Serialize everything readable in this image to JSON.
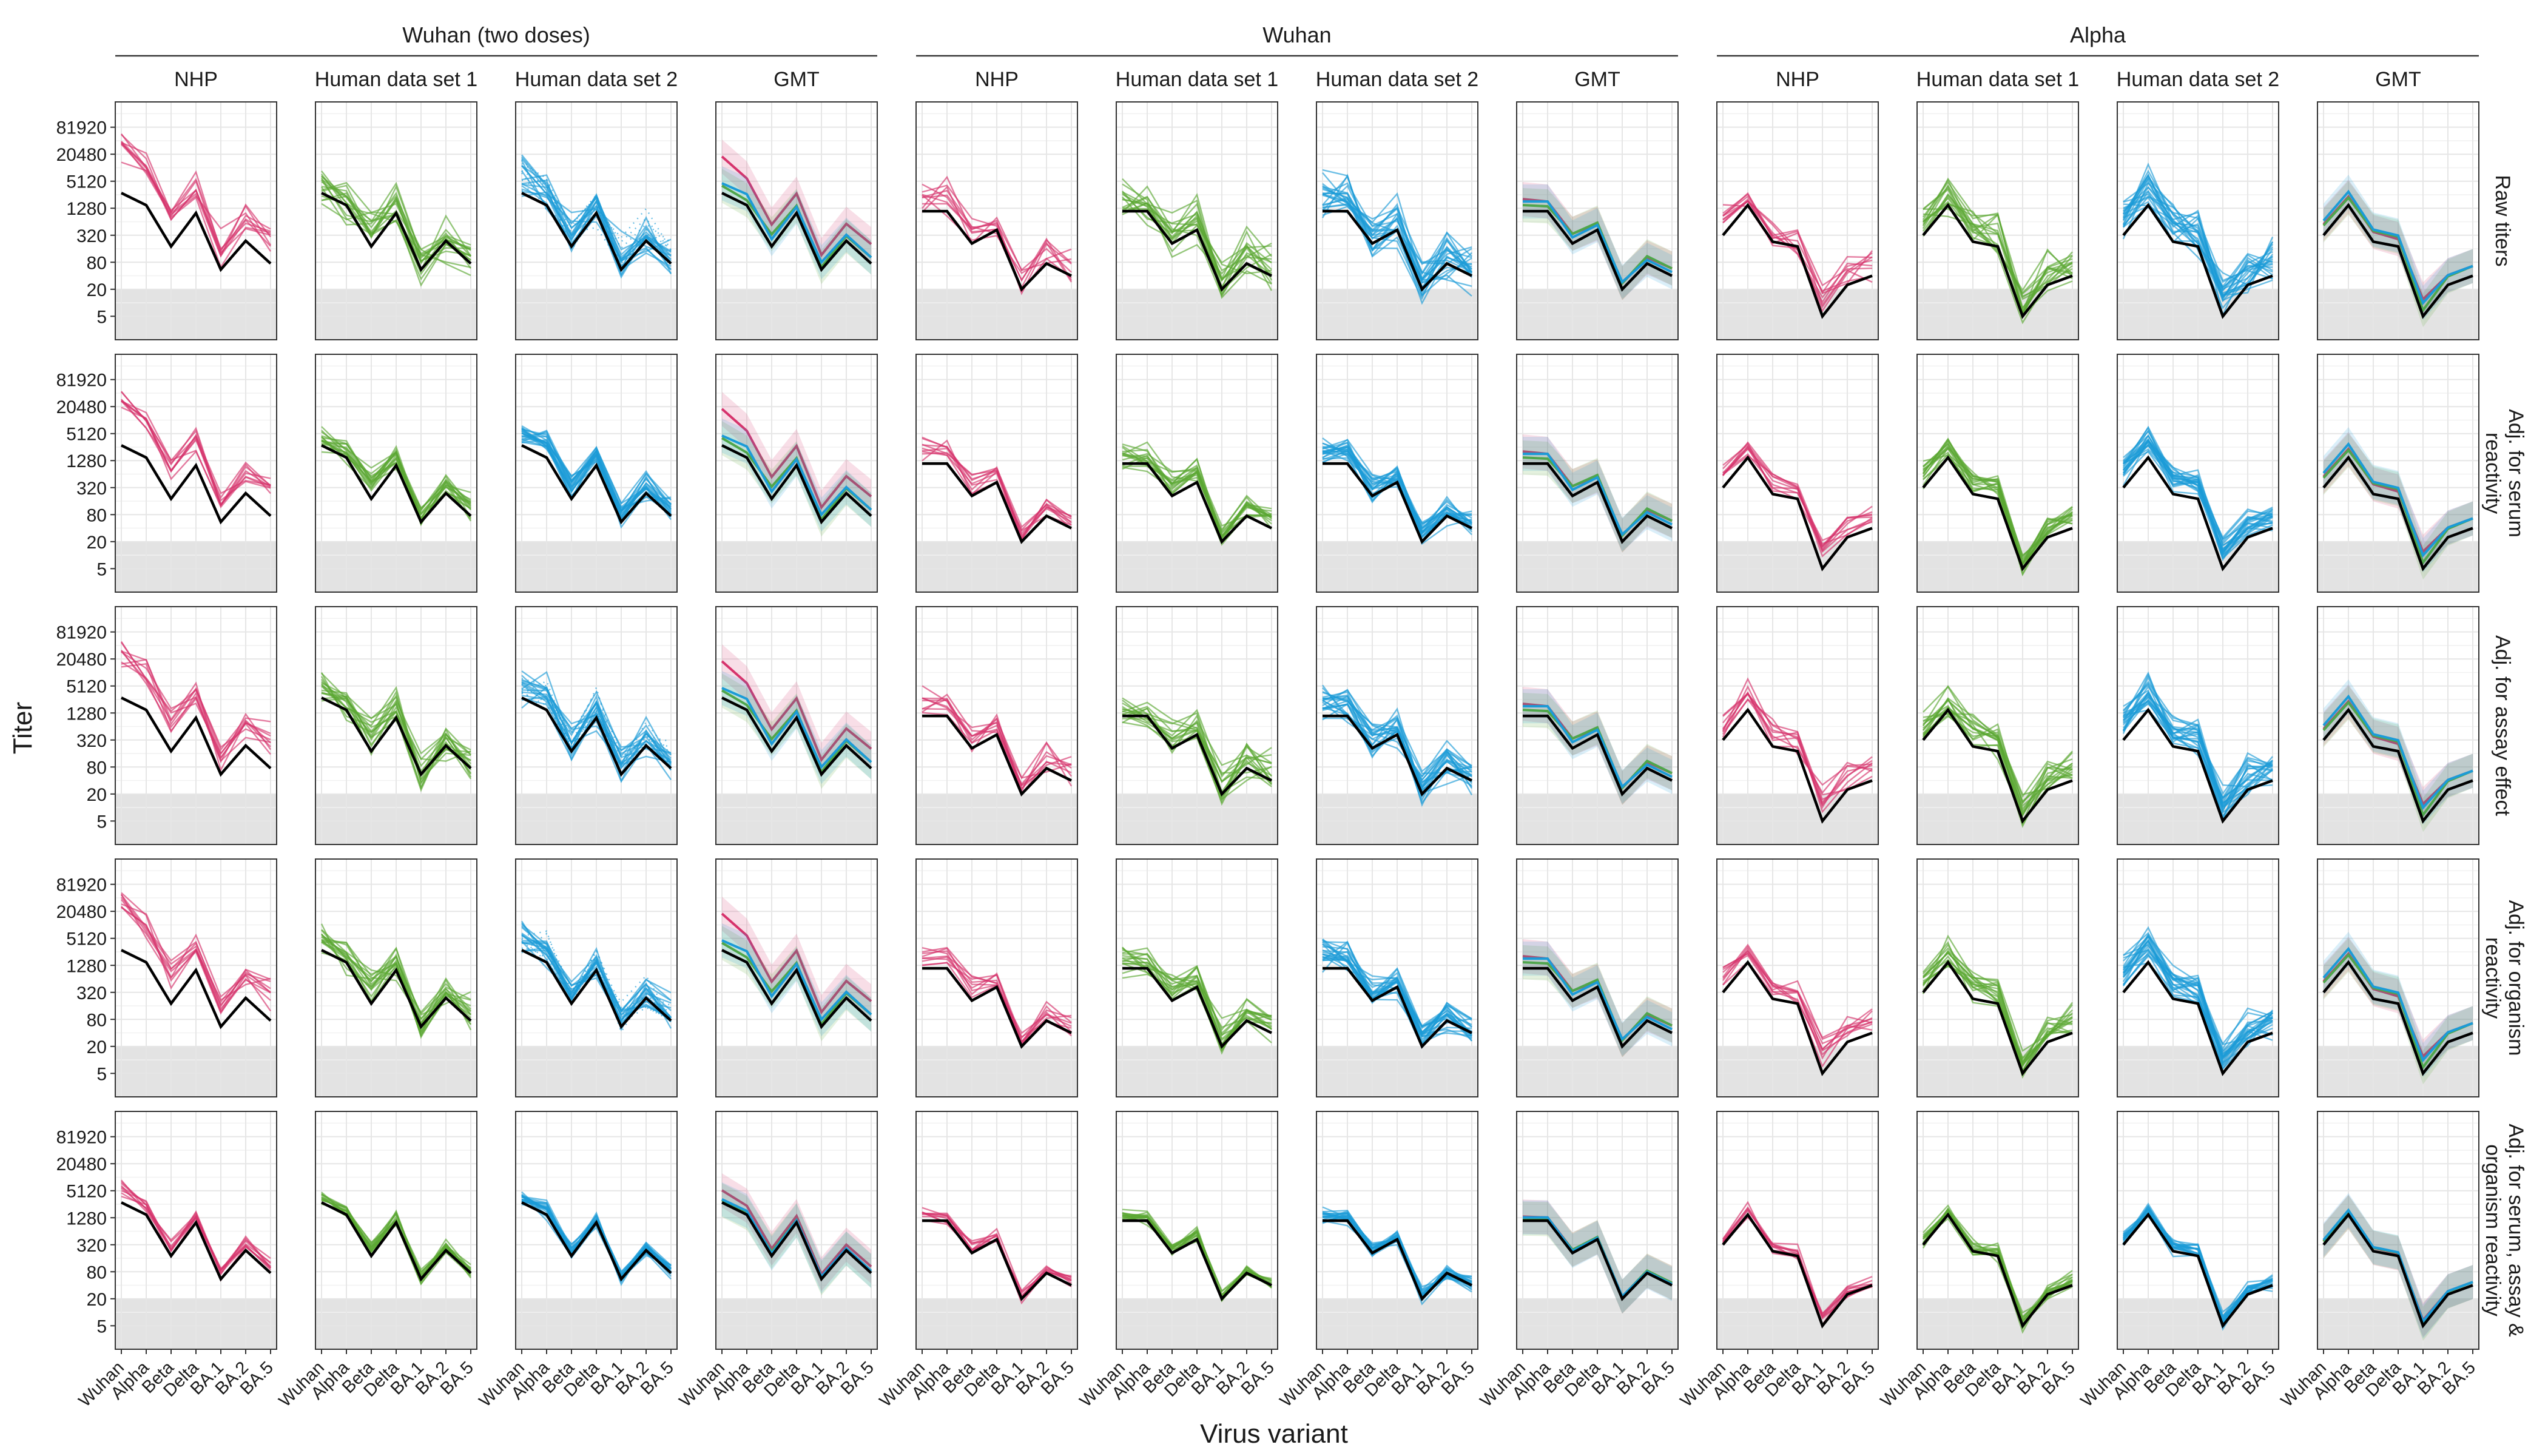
{
  "chart_data": {
    "type": "line",
    "title": "",
    "xlabel": "Virus variant",
    "ylabel": "Titer",
    "x_categories": [
      "Wuhan",
      "Alpha",
      "Beta",
      "Delta",
      "BA.1",
      "BA.2",
      "BA.5"
    ],
    "y_ticks": [
      5,
      20,
      80,
      320,
      1280,
      5120,
      20480,
      81920
    ],
    "y_scale": "log2",
    "ylim": [
      1.5,
      300000
    ],
    "lod_threshold": 20,
    "grid": true,
    "legend": "none",
    "col_groups": [
      "Wuhan (two doses)",
      "Wuhan",
      "Alpha"
    ],
    "col_panels": [
      "NHP",
      "Human data set 1",
      "Human data set 2",
      "GMT"
    ],
    "row_panels": [
      "Raw titers",
      "Adj. for serum reactivity",
      "Adj. for assay effect",
      "Adj. for organism reactivity",
      "Adj. for serum, assay & organism reactivity"
    ],
    "colors": {
      "NHP": "#d6336c",
      "Human data set 1": "#5aa832",
      "Human data set 2": "#1b9bd7",
      "GMT_reference": "#000000",
      "lod_band": "#e3e3e3"
    },
    "reference_profiles": {
      "Wuhan (two doses)": [
        2800,
        1500,
        180,
        1000,
        55,
        240,
        75
      ],
      "Wuhan": [
        1100,
        1100,
        210,
        420,
        20,
        75,
        40
      ],
      "Alpha": [
        320,
        1500,
        230,
        180,
        5,
        25,
        40
      ]
    },
    "series_offsets": {
      "Wuhan (two doses)": {
        "NHP": [
          3,
          2.2,
          1.8,
          1.6,
          1.2,
          1.4,
          1.6
        ],
        "Human data set 1": [
          0.6,
          0.4,
          1.0,
          0.6,
          0.2,
          0.4,
          0.5
        ],
        "Human data set 2": [
          0.8,
          0.9,
          0.6,
          0.5,
          0.6,
          0.5,
          0.5
        ]
      },
      "Wuhan": {
        "NHP": [
          1.0,
          0.8,
          0.8,
          0.5,
          0.5,
          0.5,
          0.6
        ],
        "Human data set 1": [
          0.5,
          0.4,
          0.8,
          0.6,
          0.5,
          0.6,
          0.6
        ],
        "Human data set 2": [
          0.8,
          0.8,
          0.5,
          0.4,
          0.6,
          0.3,
          0.3
        ]
      },
      "Alpha": {
        "NHP": [
          0.9,
          0.7,
          0.8,
          0.6,
          1.4,
          0.8,
          0.8
        ],
        "Human data set 1": [
          0.8,
          0.6,
          0.9,
          0.8,
          0.5,
          0.7,
          0.8
        ],
        "Human data set 2": [
          1.2,
          1.1,
          1.0,
          0.9,
          1.1,
          0.8,
          0.8
        ]
      }
    }
  }
}
